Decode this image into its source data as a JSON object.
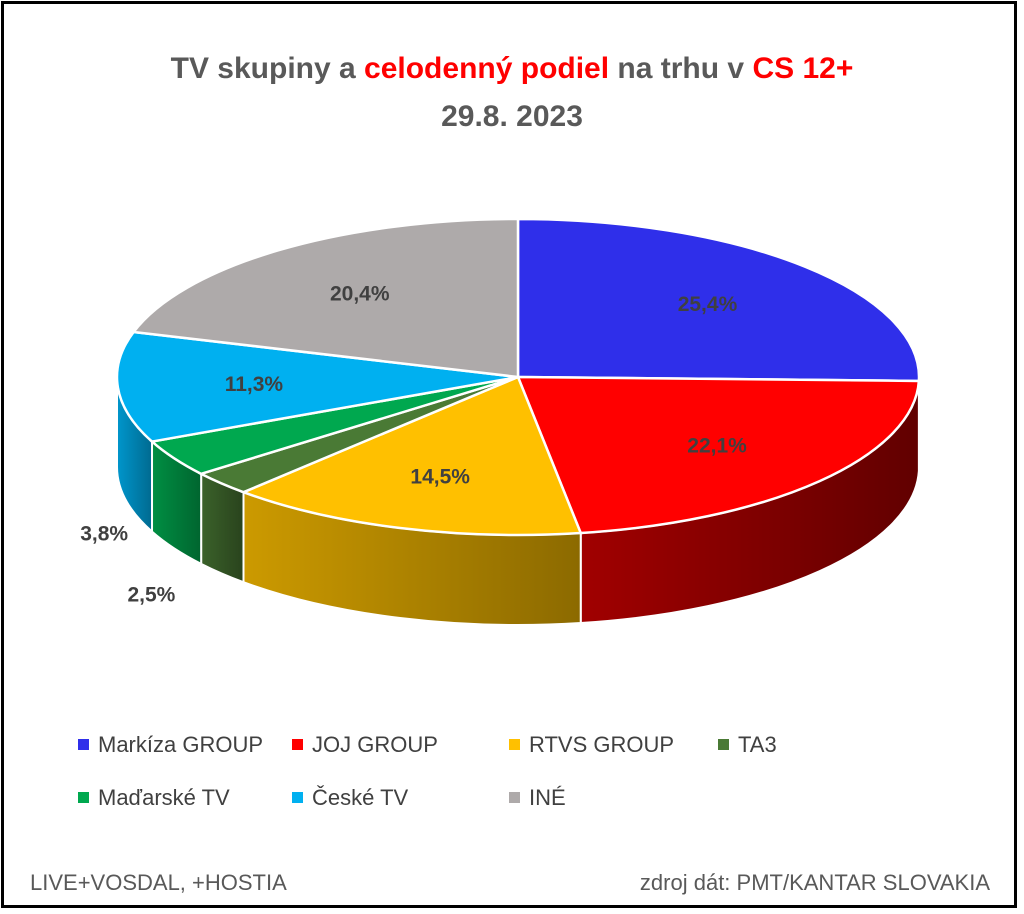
{
  "title": {
    "part1": "TV skupiny a ",
    "part2": "celodenný podiel",
    "part3": " na trhu v ",
    "part4": "CS 12+",
    "date": "29.8. 2023"
  },
  "chart_data": {
    "type": "pie",
    "categories": [
      "Markíza GROUP",
      "JOJ GROUP",
      "RTVS GROUP",
      "TA3",
      "Maďarské  TV",
      "České  TV",
      "INÉ"
    ],
    "values": [
      25.4,
      22.1,
      14.5,
      2.5,
      3.8,
      11.3,
      20.4
    ],
    "labels": [
      "25,4%",
      "22,1%",
      "14,5%",
      "2,5%",
      "3,8%",
      "11,3%",
      "20,4%"
    ],
    "colors": [
      "#2f2fea",
      "#ff0000",
      "#ffc000",
      "#4a7a35",
      "#00a84f",
      "#00b0f0",
      "#aeaaaa"
    ],
    "legend_position": "bottom"
  },
  "footer": {
    "left": "LIVE+VOSDAL, +HOSTIA",
    "right": "zdroj dát: PMT/KANTAR SLOVAKIA"
  }
}
